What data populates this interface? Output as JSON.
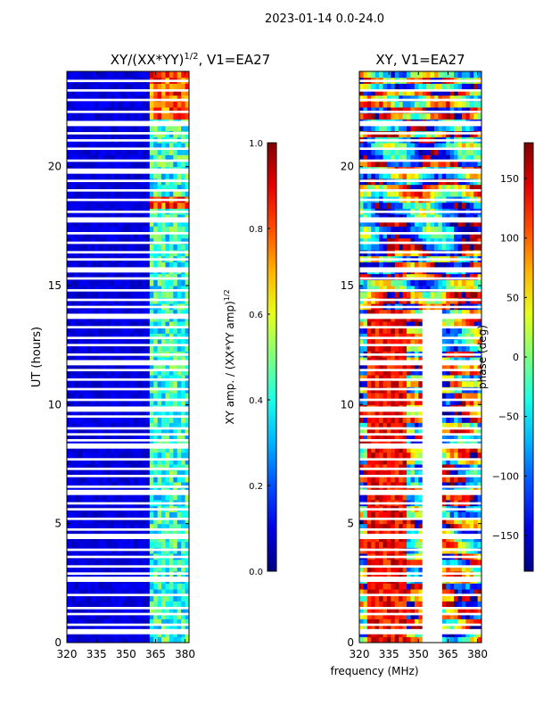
{
  "suptitle": "2023-01-14 0.0-24.0",
  "chart_data": [
    {
      "type": "heatmap",
      "title_main": "XY/(XX*YY)",
      "title_exp": "1/2",
      "title_suffix": ", V1=EA27",
      "xlabel": "",
      "ylabel": "UT (hours)",
      "xlim": [
        320,
        382
      ],
      "ylim": [
        0,
        24
      ],
      "xticks": [
        "320",
        "335",
        "350",
        "365",
        "380"
      ],
      "xtick_values": [
        320,
        335,
        350,
        365,
        380
      ],
      "yticks": [
        "0",
        "5",
        "10",
        "15",
        "20"
      ],
      "ytick_values": [
        0,
        5,
        10,
        15,
        20
      ],
      "colorbar": {
        "label_main": "XY amp. / (XX*YY amp)",
        "label_exp": "1/2",
        "range": [
          0.0,
          1.0
        ],
        "ticks": [
          "0.0",
          "0.2",
          "0.4",
          "0.6",
          "0.8",
          "1.0"
        ],
        "tick_values": [
          0.0,
          0.2,
          0.4,
          0.6,
          0.8,
          1.0
        ]
      },
      "structure": {
        "low_band_mhz": [
          320,
          362
        ],
        "low_band_value": 0.05,
        "high_band_mhz": [
          362,
          382
        ],
        "high_band_value": 0.35,
        "hot_rows_hours": [
          [
            22.0,
            24.0
          ],
          [
            18.2,
            18.8
          ]
        ],
        "hot_value": 0.95
      }
    },
    {
      "type": "heatmap",
      "title": "XY, V1=EA27",
      "xlabel": "frequency (MHz)",
      "ylabel": "",
      "xlim": [
        320,
        382
      ],
      "ylim": [
        0,
        24
      ],
      "xticks": [
        "320",
        "335",
        "350",
        "365",
        "380"
      ],
      "xtick_values": [
        320,
        335,
        350,
        365,
        380
      ],
      "yticks": [
        "0",
        "5",
        "10",
        "15",
        "20"
      ],
      "ytick_values": [
        0,
        5,
        10,
        15,
        20
      ],
      "colorbar": {
        "label": "phase (deg)",
        "range": [
          -180,
          180
        ],
        "ticks": [
          "−150",
          "−100",
          "−50",
          "0",
          "50",
          "100",
          "150"
        ],
        "tick_values": [
          -150,
          -100,
          -50,
          0,
          50,
          100,
          150
        ]
      },
      "structure": {
        "blank_band_mhz": [
          352,
          362
        ],
        "blank_band_hours": [
          0,
          14
        ],
        "red_band_mhz": [
          325,
          344
        ],
        "red_band_hours": [
          0,
          14
        ]
      }
    }
  ]
}
